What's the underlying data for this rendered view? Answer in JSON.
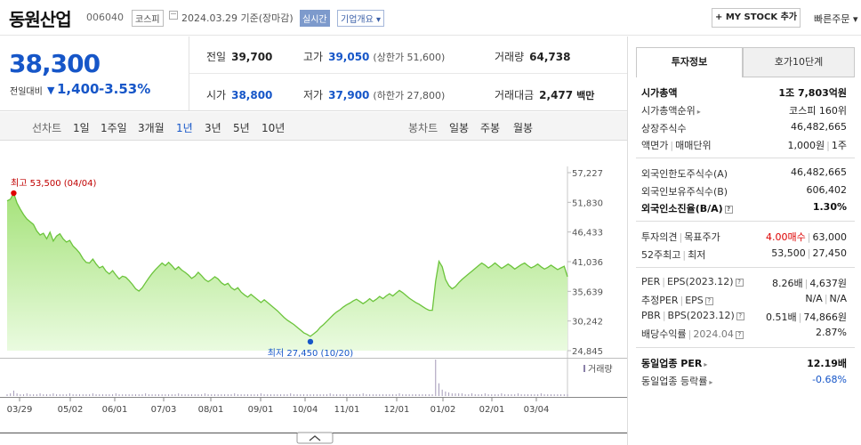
{
  "header": {
    "name": "동원산업",
    "code": "006040",
    "market": "코스피",
    "date": "2024.03.29  기준(장마감)",
    "realtime": "실시간",
    "corp_info": "기업개요",
    "mystock": "+ MY STOCK 추가",
    "quick_order": "빠른주문"
  },
  "price": {
    "current": "38,300",
    "change_label": "전일대비",
    "change": "1,400",
    "change_pct": "-3.53%",
    "prev_label": "전일",
    "prev": "39,700",
    "high_label": "고가",
    "high": "39,050",
    "upper_limit": "(상한가 51,600)",
    "volume_label": "거래량",
    "volume": "64,738",
    "open_label": "시가",
    "open": "38,800",
    "low_label": "저가",
    "low": "37,900",
    "lower_limit": "(하한가 27,800)",
    "amount_label": "거래대금",
    "amount": "2,477",
    "amount_unit": "백만"
  },
  "tabs": {
    "line_chart": "선차트",
    "periods": [
      "1일",
      "1주일",
      "3개월",
      "1년",
      "3년",
      "5년",
      "10년"
    ],
    "active": "1년",
    "candle_chart": "봉차트",
    "candles": [
      "일봉",
      "주봉",
      "월봉"
    ]
  },
  "right_panel": {
    "tab_on": "투자정보",
    "tab_off": "호가10단계",
    "market_cap_label": "시가총액",
    "market_cap": "1조 7,803억원",
    "market_cap_rank_label": "시가총액순위",
    "market_cap_rank": "코스피 160위",
    "shares_label": "상장주식수",
    "shares": "46,482,665",
    "par_label": "액면가",
    "unit_label": "매매단위",
    "par": "1,000원",
    "unit": "1주",
    "foreign_limit_label": "외국인한도주식수(A)",
    "foreign_limit": "46,482,665",
    "foreign_hold_label": "외국인보유주식수(B)",
    "foreign_hold": "606,402",
    "foreign_ratio_label": "외국인소진율(B/A)",
    "foreign_ratio": "1.30%",
    "opinion_label": "투자의견",
    "target_label": "목표주가",
    "opinion": "4.00매수",
    "target": "63,000",
    "w52_label": "52주최고",
    "w52_low_label": "최저",
    "w52_high": "53,500",
    "w52_low": "27,450",
    "per_label": "PER",
    "eps_label": "EPS(2023.12)",
    "per": "8.26배",
    "eps": "4,637원",
    "est_per_label": "추정PER",
    "est_eps_label": "EPS",
    "est_per": "N/A",
    "est_eps": "N/A",
    "pbr_label": "PBR",
    "bps_label": "BPS(2023.12)",
    "pbr": "0.51배",
    "bps": "74,866원",
    "div_label": "배당수익률",
    "div_date": "2024.04",
    "div": "2.87%",
    "ind_per_label": "동일업종 PER",
    "ind_per": "12.19배",
    "ind_chg_label": "동일업종 등락률",
    "ind_chg": "-0.68%"
  },
  "chart_data": {
    "type": "area",
    "y_ticks": [
      "57,227",
      "51,830",
      "46,433",
      "41,036",
      "35,639",
      "30,242",
      "24,845"
    ],
    "ylim": [
      24845,
      57227
    ],
    "x_labels": [
      "03/29",
      "05/02",
      "06/01",
      "07/03",
      "08/01",
      "09/01",
      "10/04",
      "11/01",
      "12/01",
      "01/02",
      "02/01",
      "03/04"
    ],
    "max_label": "최고 53,500 (04/04)",
    "min_label": "최저 27,450 (10/20)",
    "volume_label": "거래량",
    "max_point": {
      "date": "04/04",
      "value": 53500
    },
    "min_point": {
      "date": "10/20",
      "value": 27450
    },
    "prices": [
      52100,
      52400,
      53500,
      51700,
      50600,
      49600,
      48800,
      48300,
      47800,
      46600,
      45900,
      46200,
      45200,
      46400,
      44800,
      45700,
      46100,
      45200,
      44600,
      44900,
      43900,
      43300,
      42600,
      41600,
      40900,
      40800,
      41500,
      40600,
      39900,
      40200,
      39300,
      38800,
      39400,
      38600,
      37900,
      38400,
      38200,
      37600,
      36900,
      36100,
      35700,
      36300,
      37200,
      38100,
      38900,
      39600,
      40200,
      40800,
      40300,
      40900,
      40300,
      39600,
      40100,
      39500,
      39100,
      38600,
      38000,
      38400,
      39100,
      38500,
      37800,
      37400,
      37800,
      38300,
      37900,
      37200,
      36800,
      37100,
      36300,
      35900,
      36300,
      35500,
      35000,
      34600,
      35100,
      34600,
      34100,
      33600,
      34100,
      33600,
      33100,
      32600,
      32100,
      31500,
      30900,
      30400,
      30000,
      29600,
      29100,
      28600,
      28100,
      27800,
      27450,
      27900,
      28400,
      29100,
      29600,
      30200,
      30800,
      31400,
      31900,
      32300,
      32800,
      33200,
      33500,
      33900,
      34200,
      33800,
      33400,
      33800,
      34300,
      33800,
      34200,
      34700,
      34300,
      34800,
      35200,
      34800,
      35300,
      35800,
      35400,
      34900,
      34400,
      34000,
      33600,
      33300,
      32900,
      32500,
      32200,
      32200,
      37500,
      41100,
      40100,
      37800,
      36700,
      36100,
      36500,
      37200,
      37800,
      38300,
      38800,
      39300,
      39800,
      40300,
      40800,
      40400,
      39900,
      40300,
      40800,
      40300,
      39800,
      40200,
      40600,
      40200,
      39700,
      40100,
      40500,
      40800,
      40300,
      39900,
      40200,
      40600,
      40100,
      39700,
      40000,
      40400,
      40000,
      39600,
      39900,
      40200,
      38300
    ],
    "volumes": [
      2,
      3,
      6,
      3,
      2,
      2,
      3,
      2,
      2,
      2,
      3,
      2,
      2,
      2,
      3,
      2,
      2,
      2,
      2,
      3,
      2,
      2,
      2,
      2,
      2,
      2,
      3,
      2,
      2,
      2,
      2,
      2,
      2,
      3,
      2,
      2,
      2,
      2,
      2,
      2,
      2,
      2,
      3,
      2,
      2,
      2,
      2,
      2,
      2,
      2,
      2,
      2,
      3,
      2,
      2,
      2,
      2,
      2,
      2,
      2,
      3,
      2,
      2,
      2,
      2,
      2,
      2,
      2,
      2,
      3,
      2,
      2,
      2,
      2,
      2,
      2,
      2,
      3,
      2,
      2,
      2,
      2,
      2,
      2,
      2,
      2,
      3,
      2,
      2,
      2,
      2,
      2,
      2,
      2,
      2,
      2,
      2,
      2,
      3,
      2,
      2,
      2,
      2,
      2,
      2,
      2,
      2,
      2,
      3,
      2,
      2,
      2,
      2,
      2,
      2,
      2,
      2,
      2,
      2,
      3,
      2,
      2,
      2,
      2,
      2,
      2,
      2,
      2,
      2,
      2,
      40,
      14,
      7,
      5,
      4,
      3,
      3,
      3,
      3,
      2,
      2,
      3,
      2,
      2,
      2,
      3,
      2,
      2,
      2,
      2,
      3,
      2,
      2,
      2,
      2,
      3,
      2,
      2,
      2,
      2,
      2,
      2,
      3,
      2,
      2,
      2,
      2,
      2,
      2,
      2,
      2
    ]
  }
}
